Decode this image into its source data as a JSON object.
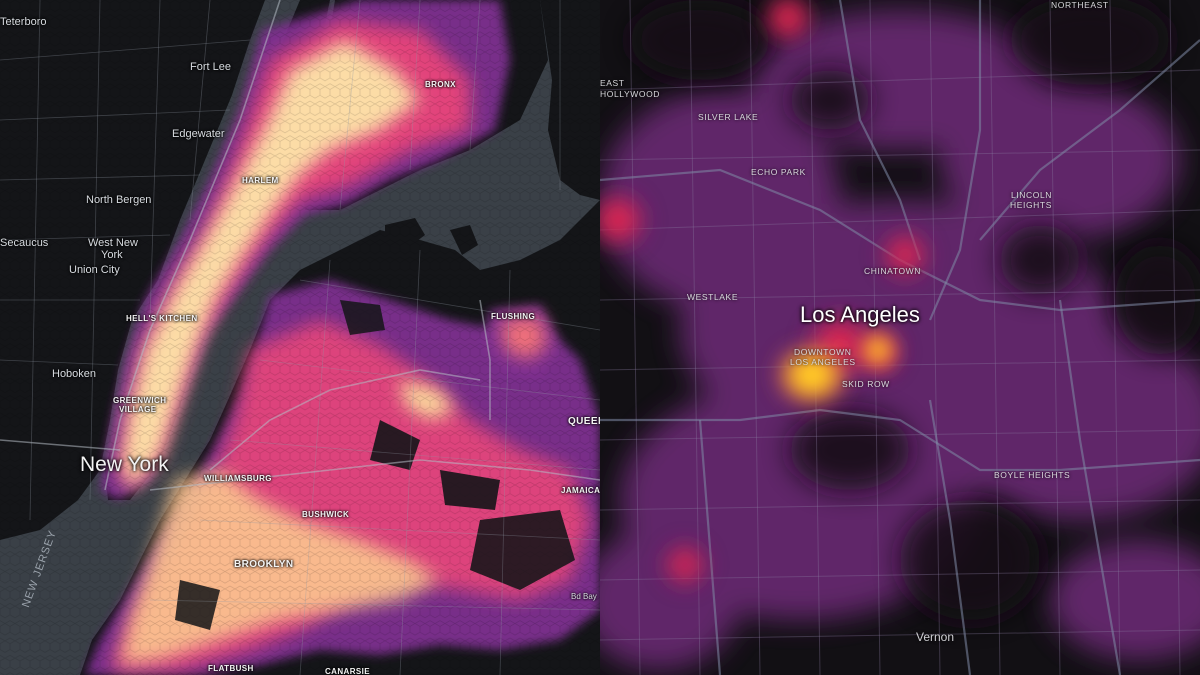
{
  "maps": {
    "new_york": {
      "city": "New York",
      "labels": {
        "teterboro": "Teterboro",
        "fort_lee": "Fort Lee",
        "edgewater": "Edgewater",
        "north_bergen": "North Bergen",
        "secaucus": "Secaucus",
        "west_new_york_line1": "West New",
        "west_new_york_line2": "York",
        "union_city": "Union City",
        "hoboken": "Hoboken",
        "new_jersey": "NEW JERSEY",
        "harlem": "HARLEM",
        "hells_kitchen": "HELL'S KITCHEN",
        "greenwich_village_line1": "GREENWICH",
        "greenwich_village_line2": "VILLAGE",
        "bronx": "BRONX",
        "flushing": "FLUSHING",
        "queens": "QUEEN",
        "williamsburg": "WILLIAMSBURG",
        "bushwick": "BUSHWICK",
        "brooklyn": "BROOKLYN",
        "jamaica": "JAMAICA",
        "flatbush": "FLATBUSH",
        "canarsie": "CANARSIE",
        "bed_bay": "Bd Bay"
      }
    },
    "los_angeles": {
      "city": "Los Angeles",
      "labels": {
        "east_hollywood_line1": "EAST",
        "east_hollywood_line2": "HOLLYWOOD",
        "silver_lake": "SILVER LAKE",
        "echo_park": "ECHO PARK",
        "westlake": "WESTLAKE",
        "chinatown": "CHINATOWN",
        "downtown_line1": "DOWNTOWN",
        "downtown_line2": "LOS ANGELES",
        "skid_row": "SKID ROW",
        "lincoln_heights_line1": "LINCOLN",
        "lincoln_heights_line2": "HEIGHTS",
        "boyle_heights": "BOYLE HEIGHTS",
        "northeast": "NORTHEAST",
        "vernon": "Vernon"
      }
    }
  },
  "colors": {
    "water": "#3a4047",
    "land": "#141518",
    "heat_low": "#7a2e8e",
    "heat_mid": "#e8457a",
    "heat_high": "#fcdba0",
    "la_heat_peak": "#ffd21e"
  }
}
